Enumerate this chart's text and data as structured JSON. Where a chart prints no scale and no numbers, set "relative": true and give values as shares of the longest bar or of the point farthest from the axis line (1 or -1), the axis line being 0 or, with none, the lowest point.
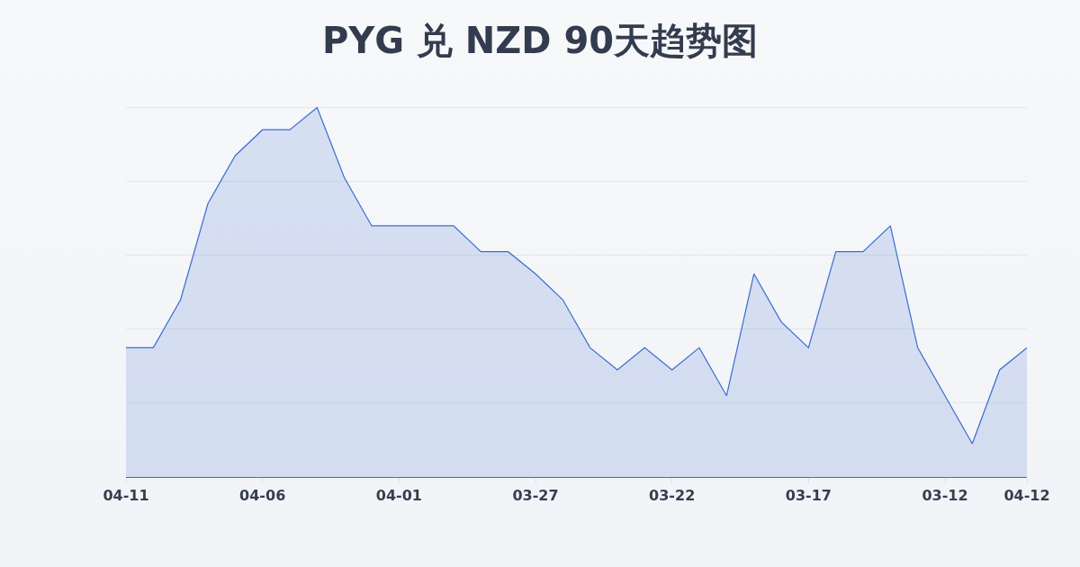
{
  "chart_data": {
    "type": "area",
    "title": "PYG 兑 NZD 90天趋势图",
    "categories": [
      "04-11",
      null,
      null,
      null,
      null,
      "04-06",
      null,
      null,
      null,
      null,
      "04-01",
      null,
      null,
      null,
      null,
      "03-27",
      null,
      null,
      null,
      null,
      "03-22",
      null,
      null,
      null,
      null,
      "03-17",
      null,
      null,
      null,
      null,
      "03-12",
      null,
      null,
      "04-12"
    ],
    "series": [
      {
        "color": "#3a6cd2",
        "values": [
          0.35,
          0.35,
          0.48,
          0.74,
          0.87,
          0.94,
          0.94,
          1,
          0.81,
          0.68,
          0.68,
          0.68,
          0.68,
          0.61,
          0.61,
          0.55,
          0.48,
          0.35,
          0.29,
          0.35,
          0.29,
          0.35,
          0.22,
          0.55,
          0.42,
          0.35,
          0.61,
          0.61,
          0.68,
          0.35,
          0.22,
          0.09,
          0.29,
          0.35
        ]
      }
    ],
    "relative": true,
    "grid": "y"
  }
}
